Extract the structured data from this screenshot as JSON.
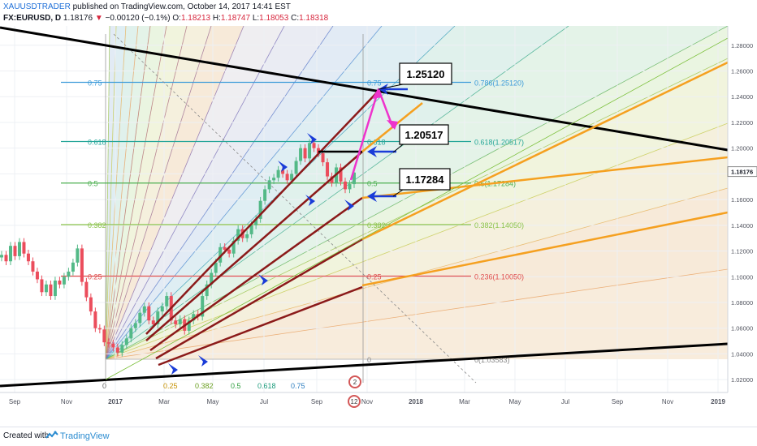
{
  "header": {
    "author": "XAUUSDTRADER",
    "published": "published on TradingView.com, October 14, 2017 14:41 EST",
    "symbol": "FX:EURUSD, D",
    "price": "1.18176",
    "change_arrow": "▼",
    "change": "−0.00120 (−0.1%)",
    "ohlc": [
      {
        "label": "O:",
        "value": "1.18213"
      },
      {
        "label": "H:",
        "value": "1.18747"
      },
      {
        "label": "L:",
        "value": "1.18053"
      },
      {
        "label": "C:",
        "value": "1.18318"
      }
    ]
  },
  "footer": {
    "created_with": "Created with",
    "brand": "TradingView"
  },
  "colors": {
    "background": "#ffffff",
    "candle_up": "#53b987",
    "candle_down": "#eb4d5c",
    "trendline": "#000000",
    "fan_dark_red": "#8b1a1a",
    "fan_orange": "#f5a020",
    "arrow_blue": "#1a3cd8",
    "arrow_magenta": "#ee33cc"
  },
  "chart_data": {
    "type": "candlestick",
    "symbol": "FX:EURUSD",
    "interval": "D",
    "x_ticks": [
      "Sep",
      "Nov",
      "2017",
      "Mar",
      "May",
      "Jul",
      "Sep",
      "Nov",
      "2018",
      "Mar",
      "May",
      "Jul",
      "Sep",
      "Nov",
      "2019"
    ],
    "y_ticks": [
      "1.28000",
      "1.26000",
      "1.24000",
      "1.22000",
      "1.20000",
      "1.18000",
      "1.16000",
      "1.14000",
      "1.12000",
      "1.10000",
      "1.08000",
      "1.06000",
      "1.04000",
      "1.02000"
    ],
    "ylim": [
      1.01,
      1.295
    ],
    "last_price": "1.18176",
    "fib_levels": [
      {
        "ratio": 0.786,
        "left_label": "0.75",
        "label": "0.786(1.25120)",
        "price": 1.2512,
        "color": "#3b9ad9"
      },
      {
        "ratio": 0.618,
        "left_label": "0.618",
        "label": "0.618(1.20517)",
        "price": 1.20517,
        "color": "#26a69a"
      },
      {
        "ratio": 0.5,
        "left_label": "0.5",
        "label": "0.5(1.17284)",
        "price": 1.17284,
        "color": "#4caf50"
      },
      {
        "ratio": 0.382,
        "left_label": "0.382",
        "label": "0.382(1.14050)",
        "price": 1.1405,
        "color": "#8bc34a"
      },
      {
        "ratio": 0.236,
        "left_label": "0.25",
        "label": "0.236(1.10050)",
        "price": 1.1005,
        "color": "#e05050"
      },
      {
        "ratio": 0,
        "left_label": "",
        "label": "0(1.03583)",
        "price": 1.03583,
        "color": "#888888"
      }
    ],
    "fan_mid_labels": [
      "0.75",
      "0.618",
      "0.5",
      "0.382",
      "0.25",
      "0"
    ],
    "fan_bottom_labels": [
      "0.25",
      "0.382",
      "0.5",
      "0.618",
      "0.75"
    ],
    "callouts": [
      "1.25120",
      "1.20517",
      "1.17284"
    ],
    "event_badges": [
      "2",
      "12"
    ],
    "close_series": [
      1.117,
      1.112,
      1.124,
      1.116,
      1.127,
      1.118,
      1.112,
      1.104,
      1.098,
      1.088,
      1.094,
      1.085,
      1.097,
      1.094,
      1.1,
      1.104,
      1.111,
      1.122,
      1.096,
      1.084,
      1.073,
      1.06,
      1.059,
      1.049,
      1.048,
      1.045,
      1.041,
      1.047,
      1.052,
      1.06,
      1.064,
      1.072,
      1.077,
      1.066,
      1.063,
      1.073,
      1.077,
      1.085,
      1.066,
      1.063,
      1.067,
      1.058,
      1.066,
      1.071,
      1.069,
      1.085,
      1.094,
      1.103,
      1.111,
      1.123,
      1.121,
      1.118,
      1.128,
      1.137,
      1.13,
      1.133,
      1.14,
      1.145,
      1.159,
      1.168,
      1.175,
      1.177,
      1.183,
      1.18,
      1.175,
      1.18,
      1.19,
      1.2,
      1.192,
      1.204,
      1.2,
      1.196,
      1.189,
      1.178,
      1.173,
      1.185,
      1.174,
      1.168,
      1.172,
      1.181
    ],
    "close_series_range": [
      "Aug 2016",
      "Oct 2017"
    ]
  }
}
